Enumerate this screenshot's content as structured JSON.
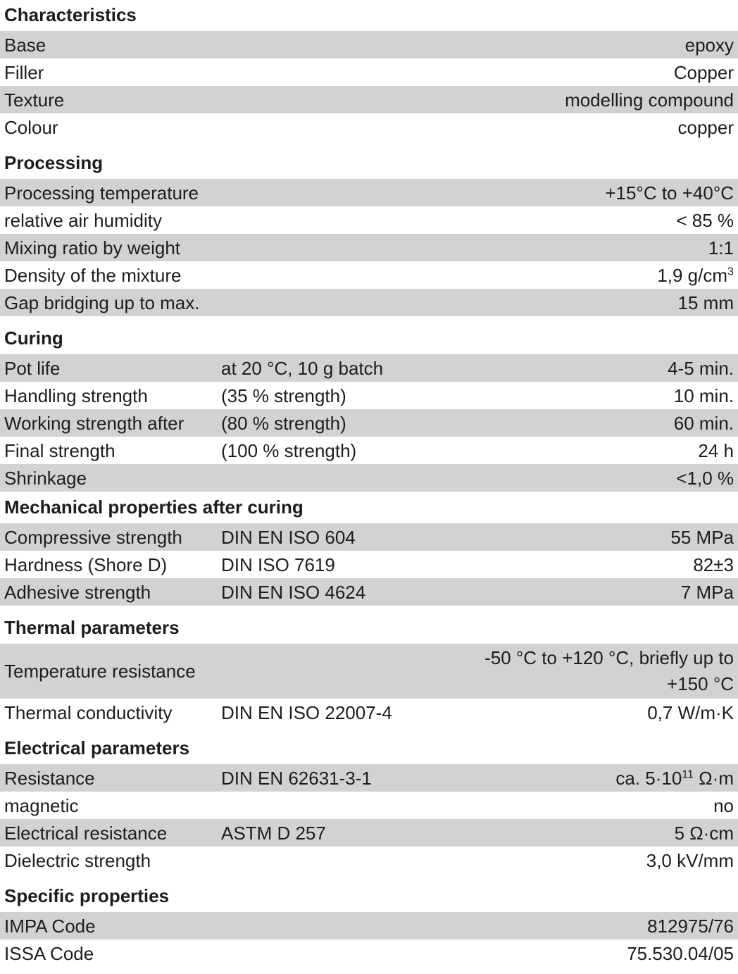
{
  "colors": {
    "row_shade": "#d2d2d2",
    "text": "#1d1d1b",
    "background": "#ffffff"
  },
  "sections": [
    {
      "title": "Characteristics",
      "rows": [
        {
          "label": "Base",
          "value": "epoxy"
        },
        {
          "label": "Filler",
          "value": "Copper"
        },
        {
          "label": "Texture",
          "value": "modelling compound"
        },
        {
          "label": "Colour",
          "value": "copper"
        }
      ]
    },
    {
      "title": "Processing",
      "rows": [
        {
          "label": "Processing temperature",
          "value": "+15°C to +40°C"
        },
        {
          "label": "relative air humidity",
          "value": "< 85 %"
        },
        {
          "label": "Mixing ratio by weight",
          "value": "1:1"
        },
        {
          "label": "Density of the mixture",
          "value": "1,9 g/cm",
          "value_sup": "3"
        },
        {
          "label": "Gap bridging up to max.",
          "value": "15 mm"
        }
      ]
    },
    {
      "title": "Curing",
      "rows": [
        {
          "label": "Pot life",
          "standard": "at 20 °C, 10 g batch",
          "value": "4-5 min."
        },
        {
          "label": "Handling strength",
          "standard": "(35 % strength)",
          "value": "10 min."
        },
        {
          "label": "Working strength after",
          "standard": "(80 % strength)",
          "value": "60 min."
        },
        {
          "label": "Final strength",
          "standard": "(100 % strength)",
          "value": "24 h"
        },
        {
          "label": "Shrinkage",
          "value": "<1,0 %"
        }
      ]
    },
    {
      "title": "Mechanical properties after curing",
      "compact": true,
      "rows": [
        {
          "label": "Compressive strength",
          "standard": "DIN EN ISO 604",
          "value": "55 MPa"
        },
        {
          "label": "Hardness (Shore D)",
          "standard": "DIN ISO 7619",
          "value": "82±3"
        },
        {
          "label": "Adhesive strength",
          "standard": "DIN EN ISO 4624",
          "value": "7 MPa"
        }
      ]
    },
    {
      "title": "Thermal parameters",
      "rows": [
        {
          "label": "Temperature resistance",
          "value": "-50 °C to +120 °C, briefly up to",
          "value_line2": "+150 °C"
        },
        {
          "label": "Thermal conductivity",
          "standard": "DIN EN ISO 22007-4",
          "value": "0,7 W/m·K"
        }
      ]
    },
    {
      "title": "Electrical parameters",
      "rows": [
        {
          "label": "Resistance",
          "standard": "DIN EN 62631-3-1",
          "value": "ca. 5·10",
          "value_sup": "11",
          "value_after": " Ω·m"
        },
        {
          "label": "magnetic",
          "value": "no"
        },
        {
          "label": "Electrical resistance",
          "standard": "ASTM D 257",
          "value": "5 Ω·cm"
        },
        {
          "label": "Dielectric strength",
          "value": "3,0 kV/mm"
        }
      ]
    },
    {
      "title": "Specific properties",
      "rows": [
        {
          "label": "IMPA Code",
          "value": "812975/76"
        },
        {
          "label": "ISSA Code",
          "value": "75.530.04/05"
        }
      ]
    }
  ]
}
